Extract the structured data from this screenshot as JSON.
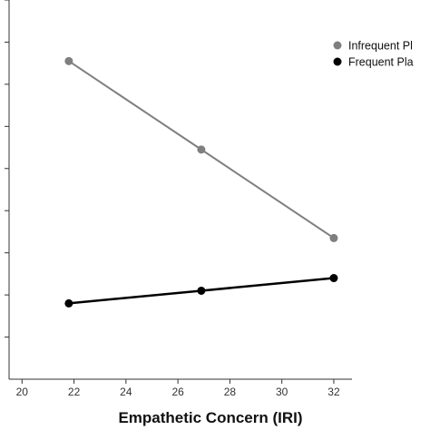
{
  "chart_data": {
    "type": "line",
    "title": "",
    "xlabel": "Empathetic Concern (IRI)",
    "ylabel": "",
    "xlim": [
      19.5,
      32.7
    ],
    "xticks": [
      20,
      22,
      24,
      26,
      28,
      30,
      32
    ],
    "ylim": [
      0,
      9
    ],
    "grid": false,
    "legend_position": "top-right",
    "series": [
      {
        "name": "Infrequent Pl",
        "color": "#7f7f7f",
        "x": [
          21.8,
          26.9,
          32.0
        ],
        "y": [
          7.55,
          5.45,
          3.35
        ]
      },
      {
        "name": "Frequent Pla",
        "color": "#000000",
        "x": [
          21.8,
          26.9,
          32.0
        ],
        "y": [
          1.8,
          2.1,
          2.4
        ]
      }
    ]
  }
}
